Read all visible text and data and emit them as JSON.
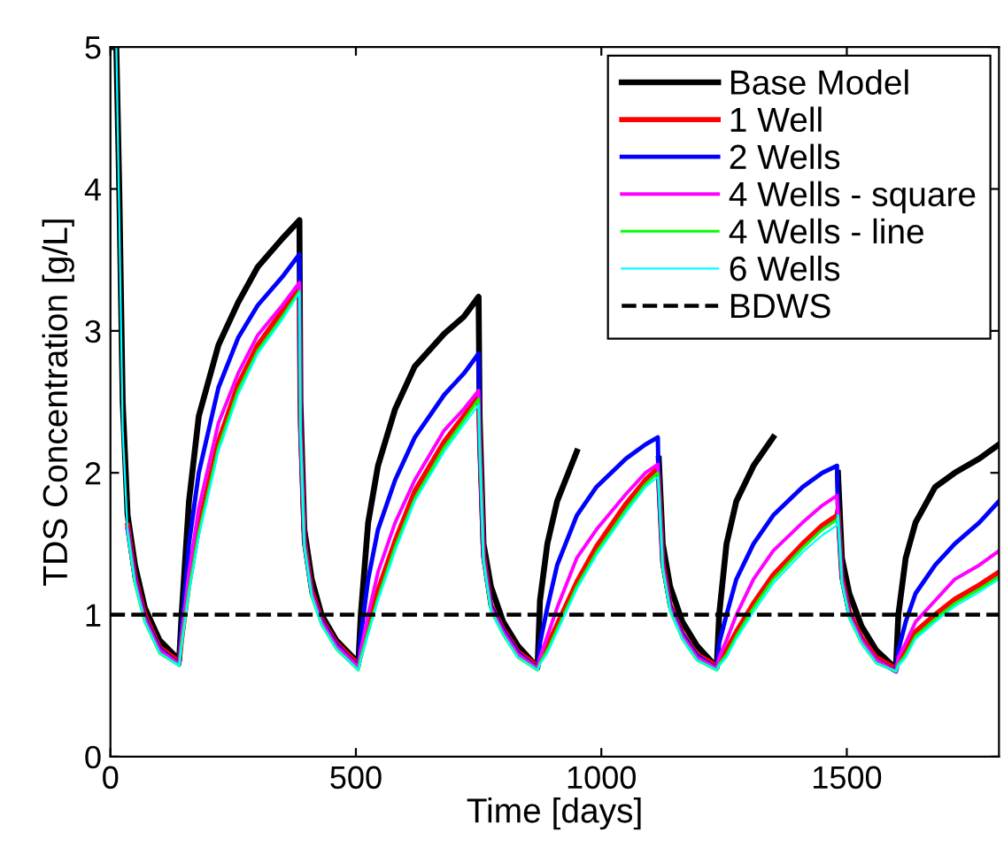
{
  "chart_data": {
    "type": "line",
    "xlabel": "Time [days]",
    "ylabel": "TDS Concentration [g/L]",
    "xlim": [
      0,
      1810
    ],
    "ylim": [
      0,
      5
    ],
    "xticks": [
      0,
      500,
      1000,
      1500
    ],
    "yticks": [
      0,
      1,
      2,
      3,
      4,
      5
    ],
    "grid": false,
    "legend": "top right",
    "marker": "none",
    "line_style": "solid",
    "x": [
      0,
      12,
      18,
      25,
      35,
      50,
      70,
      100,
      140,
      145,
      160,
      180,
      220,
      260,
      300,
      350,
      385,
      387,
      395,
      410,
      430,
      460,
      505,
      510,
      525,
      545,
      580,
      620,
      680,
      720,
      750,
      752,
      760,
      775,
      800,
      830,
      870,
      875,
      890,
      910,
      950,
      990,
      1050,
      1090,
      1115,
      1117,
      1125,
      1140,
      1165,
      1195,
      1235,
      1240,
      1255,
      1275,
      1310,
      1350,
      1410,
      1450,
      1480,
      1482,
      1490,
      1505,
      1530,
      1560,
      1600,
      1605,
      1620,
      1640,
      1680,
      1720,
      1770,
      1810
    ],
    "series": [
      {
        "name": "Base Model",
        "color": "#000000",
        "values": [
          5,
          5,
          4.0,
          2.5,
          1.7,
          1.35,
          1.05,
          0.82,
          0.68,
          1.0,
          1.8,
          2.4,
          2.9,
          3.2,
          3.45,
          3.65,
          3.78,
          2.5,
          1.6,
          1.25,
          1.0,
          0.82,
          0.66,
          1.0,
          1.65,
          2.05,
          2.45,
          2.75,
          2.98,
          3.1,
          3.24,
          2.4,
          1.5,
          1.2,
          0.95,
          0.78,
          0.63,
          1.1,
          1.5,
          1.8,
          2.15,
          null,
          null,
          null,
          null,
          2.1,
          1.5,
          1.2,
          0.95,
          0.78,
          0.63,
          1.0,
          1.5,
          1.8,
          2.05,
          2.25,
          null,
          null,
          null,
          2.0,
          1.4,
          1.15,
          0.92,
          0.75,
          0.62,
          1.0,
          1.4,
          1.65,
          1.9,
          2.0,
          2.1,
          2.2
        ]
      },
      {
        "name": "1 Well",
        "color": "#ff0000",
        "values": [
          null,
          null,
          null,
          null,
          1.63,
          1.27,
          1.0,
          0.77,
          0.67,
          0.83,
          1.22,
          1.62,
          2.22,
          2.62,
          2.9,
          3.14,
          3.31,
          2.34,
          1.52,
          1.17,
          0.97,
          0.8,
          0.65,
          0.72,
          0.92,
          1.17,
          1.52,
          1.87,
          2.22,
          2.4,
          2.54,
          2.24,
          1.42,
          1.07,
          0.9,
          0.74,
          0.64,
          0.68,
          0.78,
          0.93,
          1.23,
          1.48,
          1.78,
          1.95,
          2.03,
          1.94,
          1.37,
          1.07,
          0.87,
          0.72,
          0.64,
          0.67,
          0.75,
          0.88,
          1.08,
          1.28,
          1.5,
          1.63,
          1.7,
          1.74,
          1.27,
          1.02,
          0.84,
          0.7,
          0.62,
          0.67,
          0.75,
          0.88,
          1.0,
          1.11,
          1.21,
          1.3
        ]
      },
      {
        "name": "2 Wells",
        "color": "#0000ff",
        "values": [
          null,
          null,
          null,
          null,
          1.6,
          1.25,
          0.98,
          0.76,
          0.65,
          0.9,
          1.5,
          2.0,
          2.6,
          2.95,
          3.18,
          3.38,
          3.54,
          2.3,
          1.5,
          1.15,
          0.96,
          0.79,
          0.63,
          0.85,
          1.25,
          1.6,
          1.95,
          2.25,
          2.55,
          2.7,
          2.84,
          2.2,
          1.4,
          1.06,
          0.89,
          0.73,
          0.62,
          0.8,
          1.05,
          1.35,
          1.7,
          1.9,
          2.1,
          2.2,
          2.25,
          1.9,
          1.35,
          1.06,
          0.86,
          0.71,
          0.62,
          0.8,
          1.0,
          1.25,
          1.5,
          1.7,
          1.9,
          2.0,
          2.05,
          1.7,
          1.25,
          1.0,
          0.82,
          0.68,
          0.6,
          0.75,
          0.95,
          1.15,
          1.35,
          1.5,
          1.65,
          1.8
        ]
      },
      {
        "name": "4 Wells - square",
        "color": "#ff00ff",
        "values": [
          null,
          null,
          null,
          null,
          1.6,
          1.24,
          0.97,
          0.75,
          0.65,
          0.85,
          1.3,
          1.75,
          2.35,
          2.7,
          2.97,
          3.18,
          3.34,
          2.3,
          1.5,
          1.15,
          0.95,
          0.78,
          0.63,
          0.75,
          1.0,
          1.3,
          1.65,
          1.95,
          2.3,
          2.45,
          2.58,
          2.2,
          1.4,
          1.05,
          0.88,
          0.72,
          0.62,
          0.7,
          0.85,
          1.05,
          1.4,
          1.6,
          1.85,
          2.0,
          2.06,
          1.9,
          1.35,
          1.05,
          0.85,
          0.7,
          0.62,
          0.7,
          0.82,
          1.0,
          1.25,
          1.45,
          1.65,
          1.77,
          1.84,
          1.7,
          1.25,
          1.0,
          0.82,
          0.68,
          0.6,
          0.7,
          0.8,
          0.95,
          1.1,
          1.25,
          1.35,
          1.45
        ]
      },
      {
        "name": "4 Wells - line",
        "color": "#00ff00",
        "values": [
          null,
          null,
          null,
          null,
          1.58,
          1.22,
          0.95,
          0.73,
          0.64,
          0.8,
          1.18,
          1.58,
          2.18,
          2.58,
          2.86,
          3.1,
          3.28,
          2.3,
          1.48,
          1.13,
          0.93,
          0.76,
          0.61,
          0.7,
          0.88,
          1.12,
          1.48,
          1.82,
          2.18,
          2.37,
          2.52,
          2.2,
          1.38,
          1.03,
          0.86,
          0.7,
          0.61,
          0.66,
          0.75,
          0.9,
          1.2,
          1.44,
          1.74,
          1.92,
          2.0,
          1.9,
          1.33,
          1.03,
          0.83,
          0.68,
          0.61,
          0.65,
          0.72,
          0.85,
          1.05,
          1.25,
          1.47,
          1.6,
          1.67,
          1.7,
          1.23,
          0.98,
          0.8,
          0.66,
          0.6,
          0.65,
          0.72,
          0.85,
          0.97,
          1.08,
          1.18,
          1.27
        ]
      },
      {
        "name": "6 Wells",
        "color": "#00ffff",
        "values": [
          5,
          5,
          3.8,
          2.3,
          1.58,
          1.22,
          0.95,
          0.73,
          0.64,
          0.78,
          1.15,
          1.55,
          2.15,
          2.55,
          2.84,
          3.08,
          3.27,
          2.3,
          1.48,
          1.13,
          0.93,
          0.76,
          0.61,
          0.68,
          0.86,
          1.1,
          1.45,
          1.8,
          2.15,
          2.34,
          2.48,
          2.2,
          1.38,
          1.03,
          0.86,
          0.7,
          0.61,
          0.65,
          0.73,
          0.88,
          1.18,
          1.42,
          1.72,
          1.9,
          1.97,
          1.9,
          1.33,
          1.03,
          0.83,
          0.68,
          0.61,
          0.64,
          0.7,
          0.83,
          1.02,
          1.22,
          1.44,
          1.56,
          1.63,
          1.7,
          1.23,
          0.98,
          0.8,
          0.66,
          0.6,
          0.64,
          0.7,
          0.83,
          0.95,
          1.06,
          1.16,
          1.25
        ]
      }
    ],
    "ref_lines": [
      {
        "axis": "y",
        "value": 1,
        "label": "BDWS",
        "color": "#000000",
        "line_style": "dashed"
      }
    ]
  }
}
